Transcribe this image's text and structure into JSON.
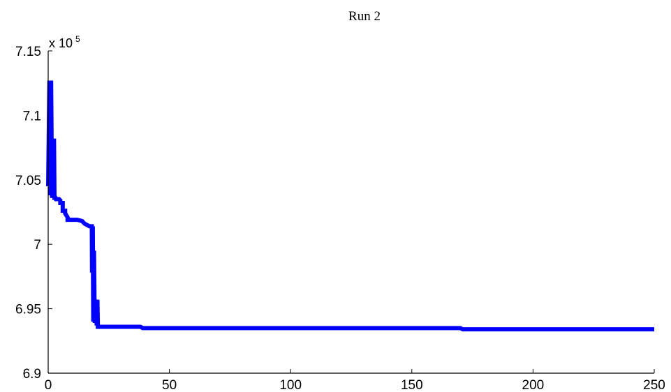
{
  "chart_data": {
    "type": "line",
    "title": "Run 2",
    "xlabel": "",
    "ylabel": "",
    "y_exponent_base": "x 10",
    "y_exponent_power": "5",
    "xlim": [
      0,
      250
    ],
    "ylim": [
      6.9,
      7.15
    ],
    "x_ticks": [
      0,
      50,
      100,
      150,
      200,
      250
    ],
    "x_tick_labels": [
      "0",
      "50",
      "100",
      "150",
      "200",
      "250"
    ],
    "y_ticks": [
      6.9,
      6.95,
      7.0,
      7.05,
      7.1,
      7.15
    ],
    "y_tick_labels": [
      "6.9",
      "6.95",
      "7",
      "7.05",
      "7.1",
      "7.15"
    ],
    "grid": false,
    "legend": "none",
    "series": [
      {
        "color": "#0000ff",
        "x": [
          0,
          0.5,
          0.8,
          1.2,
          1.6,
          2.0,
          2.1,
          2.4,
          2.6,
          3.0,
          3.2,
          3.5,
          4,
          4.5,
          5,
          5,
          6,
          6,
          7,
          7,
          8,
          8,
          10,
          12,
          14,
          15,
          16,
          17,
          18,
          18.1,
          18.4,
          18.6,
          18.9,
          19.2,
          19.6,
          20.0,
          20.3,
          20.5,
          21,
          25,
          30,
          35,
          38,
          39,
          40,
          60,
          100,
          150,
          170,
          171,
          200,
          250
        ],
        "y": [
          7.045,
          7.127,
          7.038,
          7.127,
          7.036,
          7.045,
          7.036,
          7.082,
          7.036,
          7.036,
          7.035,
          7.035,
          7.035,
          7.035,
          7.034,
          7.032,
          7.032,
          7.026,
          7.026,
          7.024,
          7.021,
          7.019,
          7.019,
          7.019,
          7.018,
          7.016,
          7.015,
          7.014,
          7.014,
          6.978,
          7.014,
          6.94,
          6.995,
          6.939,
          6.957,
          6.937,
          6.957,
          6.936,
          6.936,
          6.936,
          6.936,
          6.936,
          6.936,
          6.935,
          6.935,
          6.935,
          6.935,
          6.935,
          6.935,
          6.934,
          6.934,
          6.934
        ]
      }
    ]
  }
}
